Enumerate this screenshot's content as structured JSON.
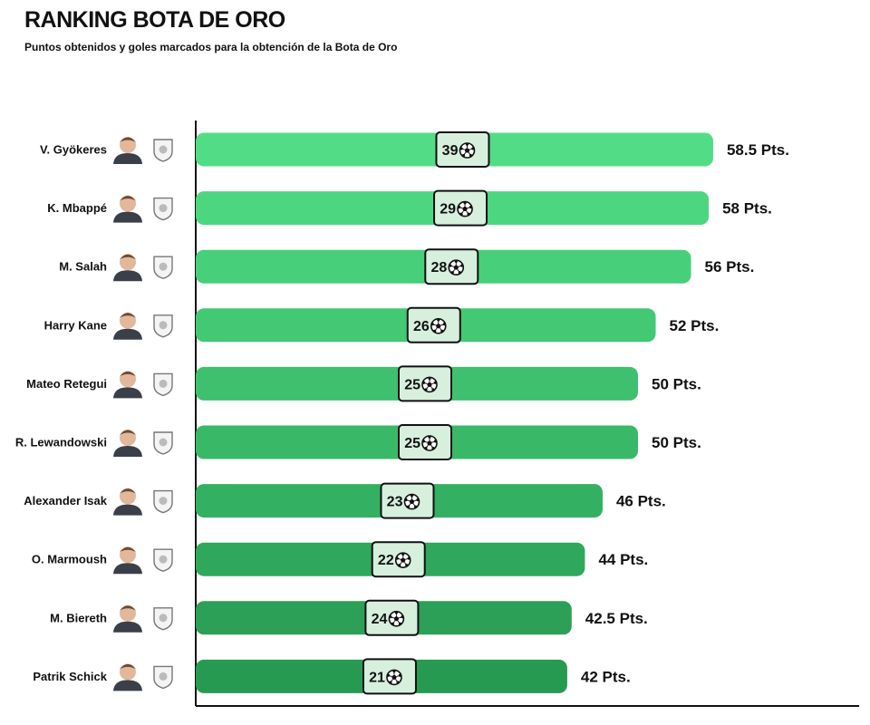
{
  "header": {
    "title": "RANKING BOTA DE ORO",
    "subtitle": "Puntos obtenidos y goles marcados para la obtención de la Bota de Oro"
  },
  "chart_data": {
    "type": "bar",
    "orientation": "horizontal",
    "title": "RANKING BOTA DE ORO",
    "subtitle": "Puntos obtenidos y goles marcados para la obtención de la Bota de Oro",
    "xlabel": "",
    "ylabel": "",
    "xlim": [
      0,
      70
    ],
    "grid": false,
    "categories": [
      "V. Gyökeres",
      "K. Mbappé",
      "M. Salah",
      "Harry Kane",
      "Mateo Retegui",
      "R. Lewandowski",
      "Alexander Isak",
      "O. Marmoush",
      "M. Biereth",
      "Patrik Schick"
    ],
    "series": [
      {
        "values": [
          58.5,
          58,
          56,
          52,
          50,
          50,
          46,
          44,
          42.5,
          42
        ],
        "labels": [
          "58.5 Pts.",
          "58 Pts.",
          "56 Pts.",
          "52 Pts.",
          "50 Pts.",
          "50 Pts.",
          "46 Pts.",
          "44 Pts.",
          "42.5 Pts.",
          "42 Pts."
        ]
      },
      {
        "values": [
          39,
          29,
          28,
          26,
          25,
          25,
          23,
          22,
          24,
          21
        ]
      }
    ],
    "colors": {
      "bars": [
        "#52dc86",
        "#4cd680",
        "#47cf7a",
        "#43c874",
        "#3ec06e",
        "#39b868",
        "#34b062",
        "#2fa85c",
        "#2ba056",
        "#279a52"
      ],
      "badge_fill": "#d6f0dd",
      "badge_stroke": "#111111",
      "axis": "#111111"
    },
    "icons": {
      "goal_icon": "soccer-ball-icon",
      "player_icons": [
        "player-photo-icon"
      ],
      "club_icons": [
        "sporting-cp-crest-icon",
        "real-madrid-crest-icon",
        "liverpool-crest-icon",
        "bayern-munich-crest-icon",
        "atalanta-crest-icon",
        "fc-barcelona-crest-icon",
        "newcastle-crest-icon",
        "manchester-city-crest-icon",
        "monaco-crest-icon",
        "bayer-leverkusen-crest-icon"
      ]
    }
  }
}
